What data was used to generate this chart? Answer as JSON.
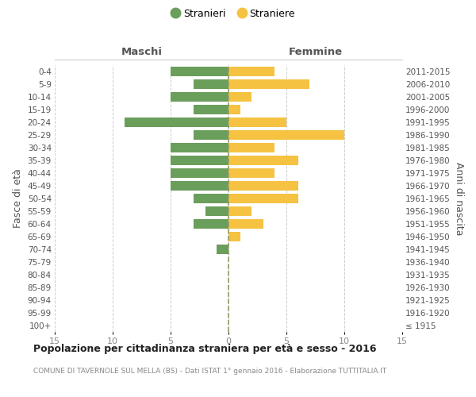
{
  "age_groups": [
    "0-4",
    "5-9",
    "10-14",
    "15-19",
    "20-24",
    "25-29",
    "30-34",
    "35-39",
    "40-44",
    "45-49",
    "50-54",
    "55-59",
    "60-64",
    "65-69",
    "70-74",
    "75-79",
    "80-84",
    "85-89",
    "90-94",
    "95-99",
    "100+"
  ],
  "birth_years": [
    "2011-2015",
    "2006-2010",
    "2001-2005",
    "1996-2000",
    "1991-1995",
    "1986-1990",
    "1981-1985",
    "1976-1980",
    "1971-1975",
    "1966-1970",
    "1961-1965",
    "1956-1960",
    "1951-1955",
    "1946-1950",
    "1941-1945",
    "1936-1940",
    "1931-1935",
    "1926-1930",
    "1921-1925",
    "1916-1920",
    "≤ 1915"
  ],
  "maschi": [
    5,
    3,
    5,
    3,
    9,
    3,
    5,
    5,
    5,
    5,
    3,
    2,
    3,
    0,
    1,
    0,
    0,
    0,
    0,
    0,
    0
  ],
  "femmine": [
    4,
    7,
    2,
    1,
    5,
    10,
    4,
    6,
    4,
    6,
    6,
    2,
    3,
    1,
    0,
    0,
    0,
    0,
    0,
    0,
    0
  ],
  "male_color": "#6a9e5b",
  "female_color": "#f5c242",
  "xlim": 15,
  "title": "Popolazione per cittadinanza straniera per età e sesso - 2016",
  "subtitle": "COMUNE DI TAVERNOLE SUL MELLA (BS) - Dati ISTAT 1° gennaio 2016 - Elaborazione TUTTITALIA.IT",
  "ylabel_left": "Fasce di età",
  "ylabel_right": "Anni di nascita",
  "legend_male": "Stranieri",
  "legend_female": "Straniere",
  "header_left": "Maschi",
  "header_right": "Femmine",
  "background_color": "#ffffff",
  "grid_color": "#cccccc",
  "tick_color": "#888888",
  "label_color": "#555555",
  "center_line_color": "#999966"
}
